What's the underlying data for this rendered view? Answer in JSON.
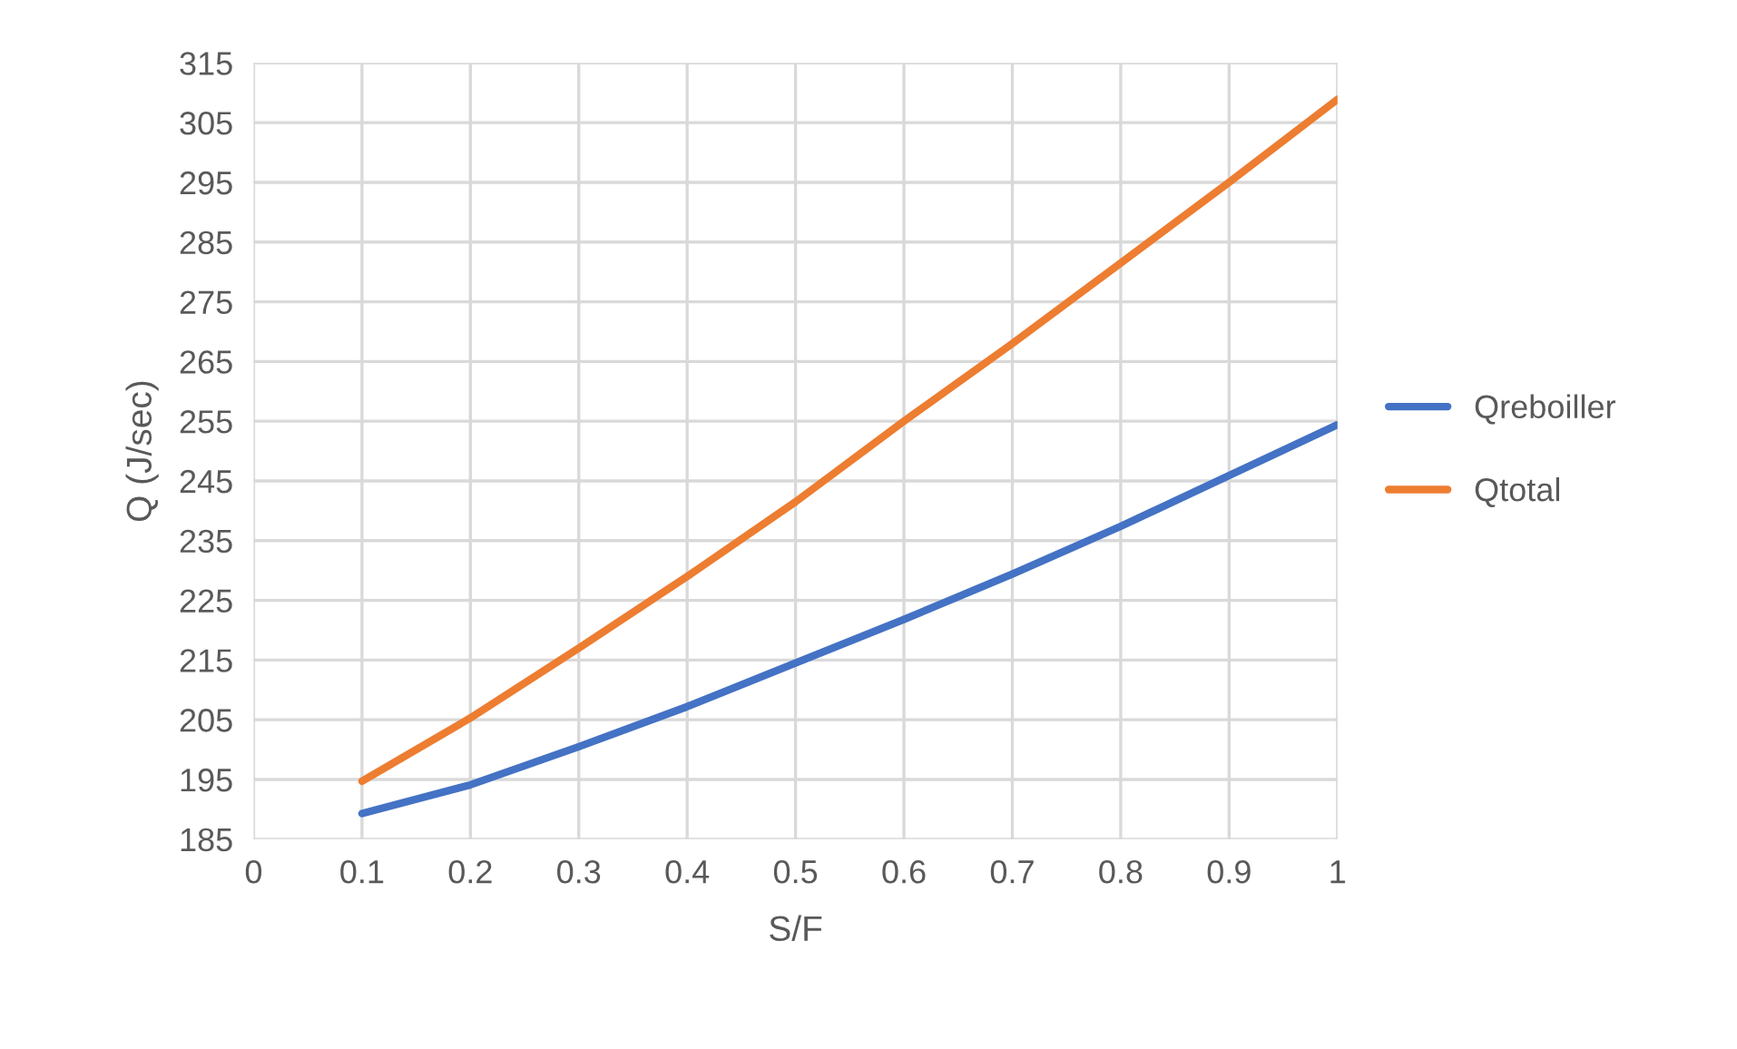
{
  "chart_data": {
    "type": "line",
    "xlabel": "S/F",
    "ylabel": "Q (J/sec)",
    "x": [
      0.1,
      0.2,
      0.3,
      0.4,
      0.5,
      0.6,
      0.7,
      0.8,
      0.9,
      1.0
    ],
    "series": [
      {
        "name": "Qreboiller",
        "color": "#4472c4",
        "values": [
          189.3,
          194.1,
          200.5,
          207.2,
          214.5,
          221.8,
          229.4,
          237.4,
          245.9,
          254.4
        ]
      },
      {
        "name": "Qtotal",
        "color": "#ed7d31",
        "values": [
          194.7,
          205.3,
          217,
          229,
          241.5,
          255,
          268,
          281.5,
          295,
          308.9
        ]
      }
    ],
    "xlim": [
      0,
      1
    ],
    "xticks": [
      0,
      0.1,
      0.2,
      0.3,
      0.4,
      0.5,
      0.6,
      0.7,
      0.8,
      0.9,
      1
    ],
    "ylim": [
      185,
      315
    ],
    "yticks": [
      185,
      195,
      205,
      215,
      225,
      235,
      245,
      255,
      265,
      275,
      285,
      295,
      305,
      315
    ],
    "grid": true,
    "legend": "right",
    "marker": "none",
    "line_style": "solid"
  }
}
